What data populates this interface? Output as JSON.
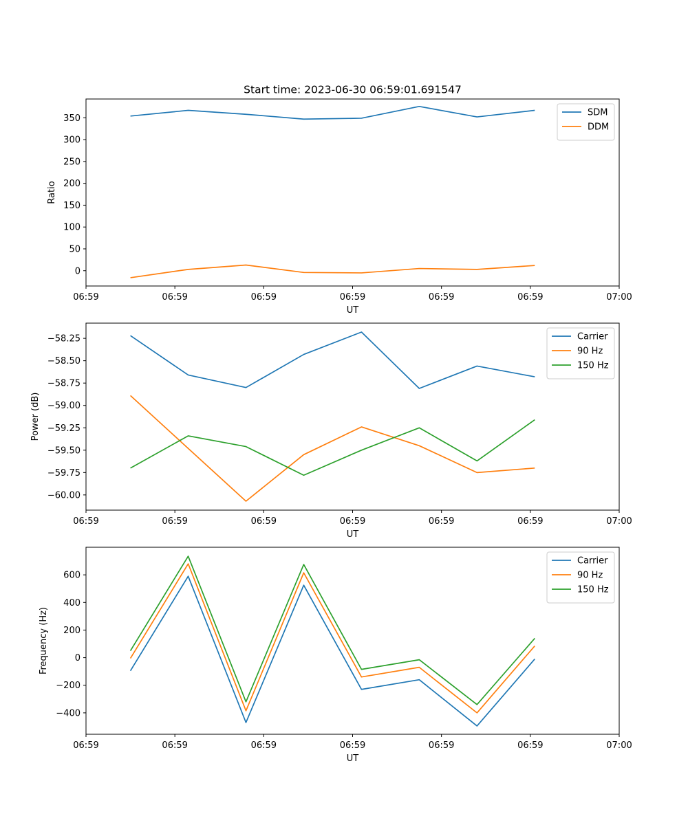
{
  "figure": {
    "title": "Start time: 2023-06-30 06:59:01.691547"
  },
  "chart_data": [
    {
      "type": "line",
      "title": "Start time: 2023-06-30 06:59:01.691547",
      "xlabel": "UT",
      "ylabel": "Ratio",
      "x_tick_labels": [
        "06:59",
        "06:59",
        "06:59",
        "06:59",
        "06:59",
        "06:59",
        "07:00"
      ],
      "y_ticks": [
        0,
        50,
        100,
        150,
        200,
        250,
        300,
        350
      ],
      "y_tick_labels": [
        "0",
        "50",
        "100",
        "150",
        "200",
        "250",
        "300",
        "350"
      ],
      "xlim": [
        0,
        6
      ],
      "ylim": [
        -35,
        393
      ],
      "legend_position": "top-right",
      "grid": false,
      "x": [
        0.5,
        1.15,
        1.8,
        2.45,
        3.1,
        3.75,
        4.4,
        5.05
      ],
      "series": [
        {
          "name": "SDM",
          "color": "#1f77b4",
          "values": [
            354,
            367,
            358,
            347,
            349,
            376,
            352,
            367
          ]
        },
        {
          "name": "DDM",
          "color": "#ff7f0e",
          "values": [
            -16,
            3,
            13,
            -4,
            -5,
            5,
            3,
            12
          ]
        }
      ]
    },
    {
      "type": "line",
      "title": "",
      "xlabel": "UT",
      "ylabel": "Power (dB)",
      "x_tick_labels": [
        "06:59",
        "06:59",
        "06:59",
        "06:59",
        "06:59",
        "06:59",
        "07:00"
      ],
      "y_ticks": [
        -60.0,
        -59.75,
        -59.5,
        -59.25,
        -59.0,
        -58.75,
        -58.5,
        -58.25
      ],
      "y_tick_labels": [
        "−60.00",
        "−59.75",
        "−59.50",
        "−59.25",
        "−59.00",
        "−58.75",
        "−58.50",
        "−58.25"
      ],
      "xlim": [
        0,
        6
      ],
      "ylim": [
        -60.17,
        -58.08
      ],
      "legend_position": "top-right",
      "grid": false,
      "x": [
        0.5,
        1.15,
        1.8,
        2.45,
        3.1,
        3.75,
        4.4,
        5.05
      ],
      "series": [
        {
          "name": "Carrier",
          "color": "#1f77b4",
          "values": [
            -58.22,
            -58.66,
            -58.8,
            -58.43,
            -58.18,
            -58.81,
            -58.56,
            -58.68
          ]
        },
        {
          "name": "90 Hz",
          "color": "#ff7f0e",
          "values": [
            -58.89,
            -59.48,
            -60.07,
            -59.55,
            -59.24,
            -59.45,
            -59.75,
            -59.7
          ]
        },
        {
          "name": "150 Hz",
          "color": "#2ca02c",
          "values": [
            -59.7,
            -59.34,
            -59.46,
            -59.78,
            -59.5,
            -59.25,
            -59.62,
            -59.16
          ]
        }
      ]
    },
    {
      "type": "line",
      "title": "",
      "xlabel": "UT",
      "ylabel": "Frequency (Hz)",
      "x_tick_labels": [
        "06:59",
        "06:59",
        "06:59",
        "06:59",
        "06:59",
        "06:59",
        "07:00"
      ],
      "y_ticks": [
        -400,
        -200,
        0,
        200,
        400,
        600
      ],
      "y_tick_labels": [
        "−400",
        "−200",
        "0",
        "200",
        "400",
        "600"
      ],
      "xlim": [
        0,
        6
      ],
      "ylim": [
        -555,
        800
      ],
      "legend_position": "top-right",
      "grid": false,
      "x": [
        0.5,
        1.15,
        1.8,
        2.45,
        3.1,
        3.75,
        4.4,
        5.05
      ],
      "series": [
        {
          "name": "Carrier",
          "color": "#1f77b4",
          "values": [
            -95,
            590,
            -470,
            525,
            -230,
            -160,
            -495,
            -10
          ]
        },
        {
          "name": "90 Hz",
          "color": "#ff7f0e",
          "values": [
            -5,
            680,
            -385,
            615,
            -140,
            -70,
            -400,
            85
          ]
        },
        {
          "name": "150 Hz",
          "color": "#2ca02c",
          "values": [
            50,
            735,
            -320,
            675,
            -85,
            -15,
            -340,
            140
          ]
        }
      ]
    }
  ]
}
